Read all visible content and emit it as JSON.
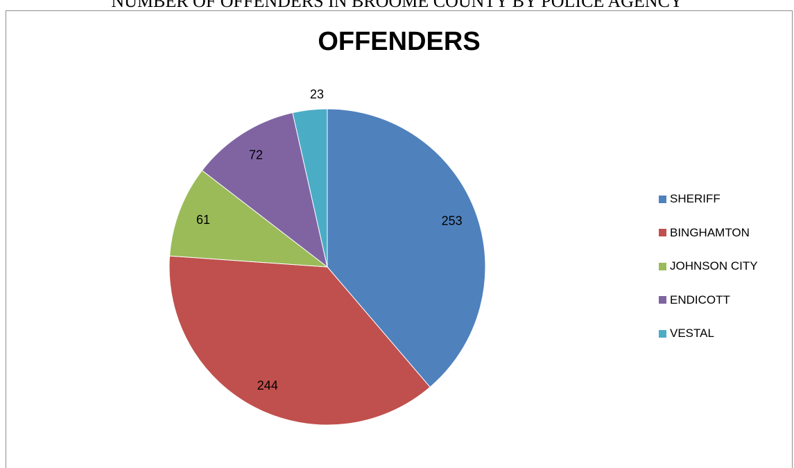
{
  "page": {
    "heading": "NUMBER OF OFFENDERS IN BROOME COUNTY BY POLICE AGENCY"
  },
  "chart_data": {
    "type": "pie",
    "title": "OFFENDERS",
    "categories": [
      "SHERIFF",
      "BINGHAMTON",
      "JOHNSON CITY",
      "ENDICOTT",
      "VESTAL"
    ],
    "values": [
      253,
      244,
      61,
      72,
      23
    ],
    "colors": [
      "#4f81bd",
      "#c0504d",
      "#9bbb59",
      "#8064a2",
      "#4bacc6"
    ],
    "data_labels": [
      "253",
      "244",
      "61",
      "72",
      "23"
    ],
    "legend_position": "right"
  }
}
